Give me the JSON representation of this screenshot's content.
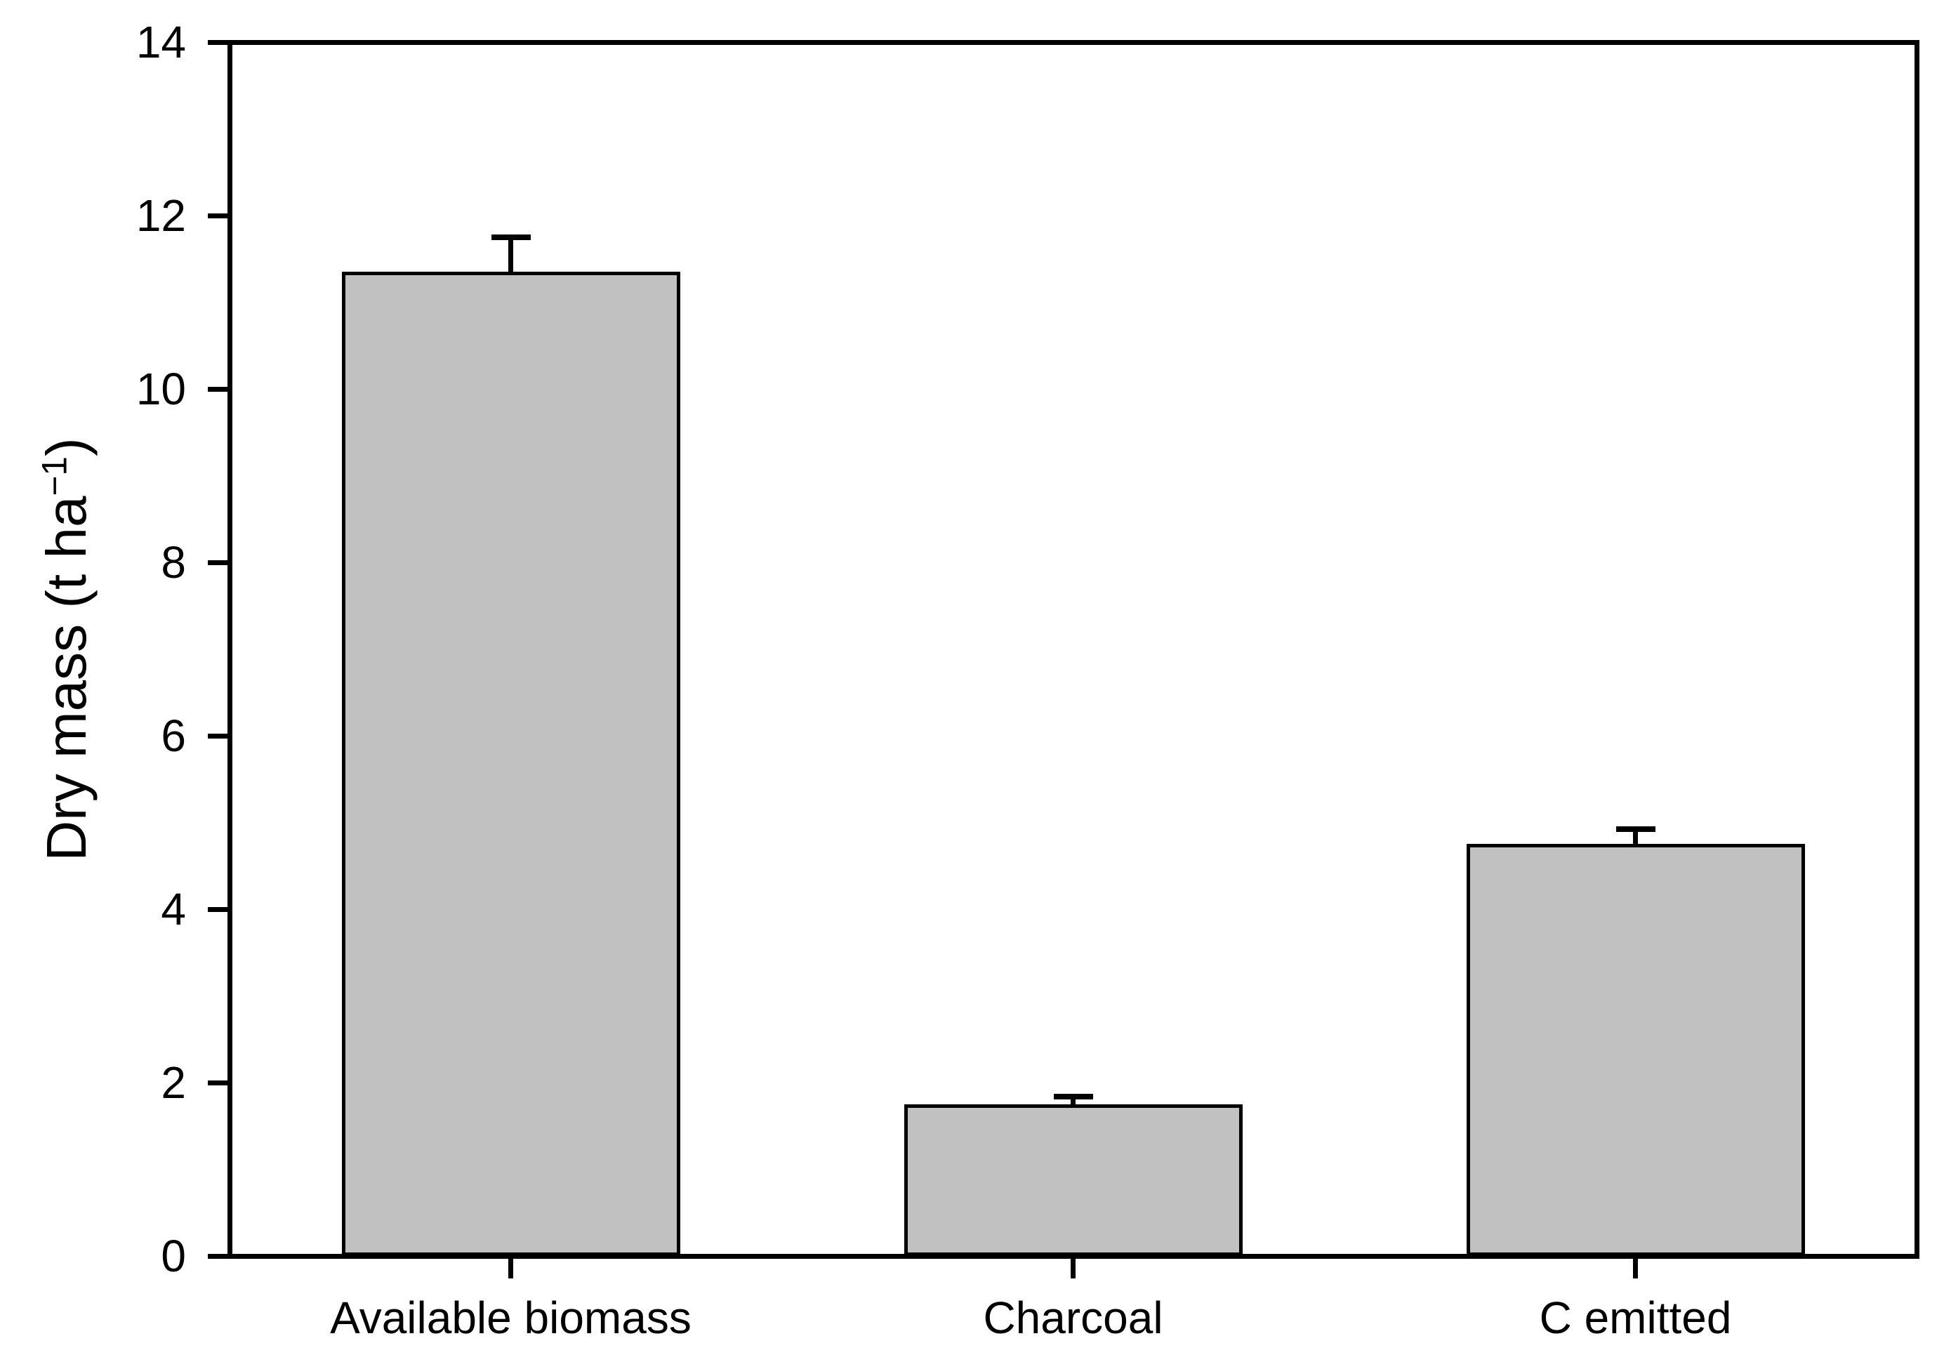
{
  "figure": {
    "background_color": "#ffffff",
    "frame_color": "#000000",
    "text_color": "#000000"
  },
  "axes": {
    "y_label_pre": "Dry mass (t ha",
    "y_label_sup": "−1",
    "y_label_post": ")",
    "y_tick_labels": [
      "0",
      "2",
      "4",
      "6",
      "8",
      "10",
      "12",
      "14"
    ]
  },
  "chart_data": {
    "type": "bar",
    "title": "",
    "xlabel": "",
    "ylabel": "Dry mass (t ha^-1)",
    "categories": [
      "Available biomass",
      "Charcoal",
      "C emitted"
    ],
    "values": [
      11.35,
      1.75,
      4.75
    ],
    "error_upper": [
      0.4,
      0.09,
      0.17
    ],
    "ylim": [
      0,
      14
    ],
    "yticks": [
      0,
      2,
      4,
      6,
      8,
      10,
      12,
      14
    ],
    "grid": false,
    "legend": null,
    "frame": "full-box",
    "bar_fill_color": "#c1c1c1",
    "bar_edge_color": "#000000"
  }
}
